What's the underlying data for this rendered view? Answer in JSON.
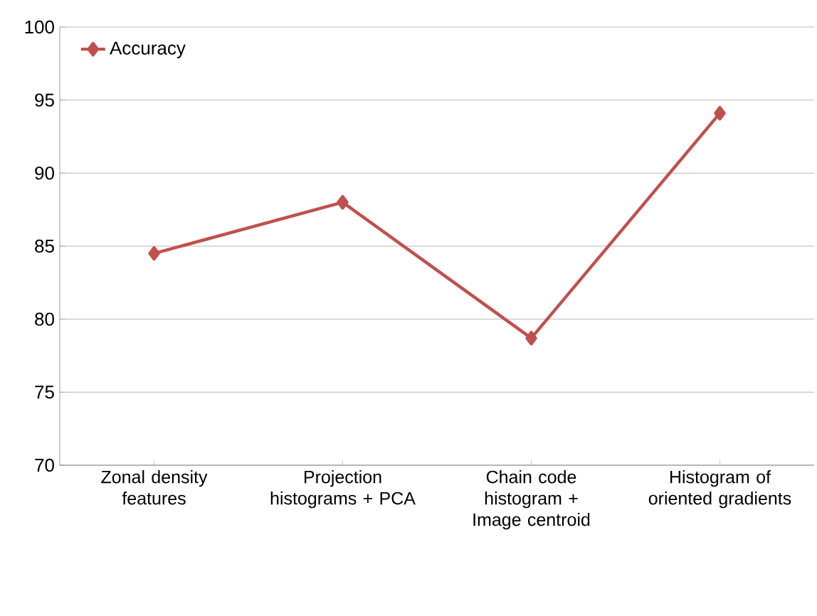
{
  "chart_data": {
    "type": "line",
    "categories": [
      "Zonal density features",
      "Projection histograms + PCA",
      "Chain code histogram + Image centroid",
      "Histogram of oriented gradients"
    ],
    "series": [
      {
        "name": "Accuracy",
        "color": "#c0504d",
        "values": [
          84.5,
          88,
          78.7,
          94.1
        ]
      }
    ],
    "ylim": [
      70,
      100
    ],
    "yticks": [
      70,
      75,
      80,
      85,
      90,
      95,
      100
    ],
    "grid": "y",
    "legend": "top left",
    "marker": "diamond",
    "line_style": "solid"
  }
}
